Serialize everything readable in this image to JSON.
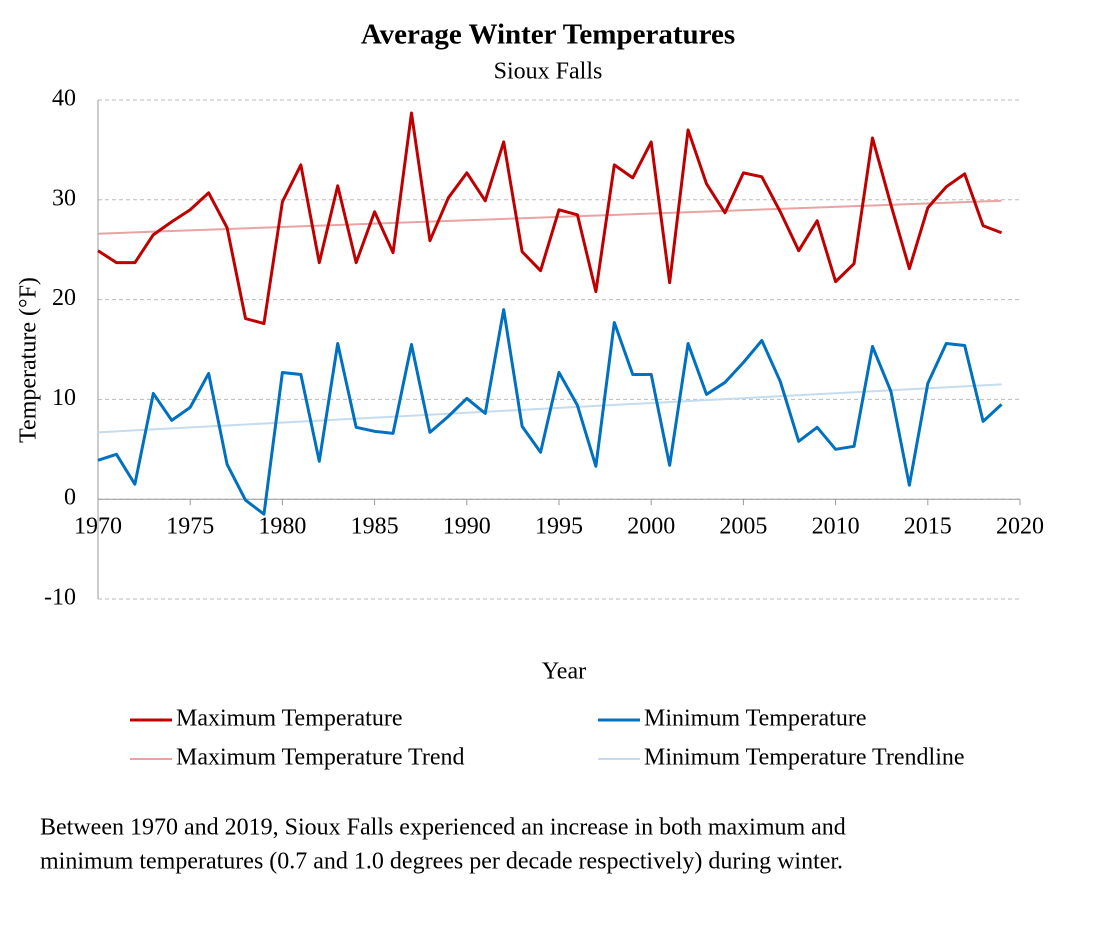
{
  "chart_data": {
    "type": "line",
    "title": "Average Winter Temperatures",
    "subtitle": "Sioux Falls",
    "x_label": "Year",
    "y_label": "Temperature (°F)",
    "x": [
      1970,
      1971,
      1972,
      1973,
      1974,
      1975,
      1976,
      1977,
      1978,
      1979,
      1980,
      1981,
      1982,
      1983,
      1984,
      1985,
      1986,
      1987,
      1988,
      1989,
      1990,
      1991,
      1992,
      1993,
      1994,
      1995,
      1996,
      1997,
      1998,
      1999,
      2000,
      2001,
      2002,
      2003,
      2004,
      2005,
      2006,
      2007,
      2008,
      2009,
      2010,
      2011,
      2012,
      2013,
      2014,
      2015,
      2016,
      2017,
      2018,
      2019
    ],
    "series": [
      {
        "name": "Maximum Temperature",
        "color": "#c00000",
        "line_width": 3,
        "values": [
          24.9,
          23.7,
          23.7,
          26.5,
          27.8,
          29.0,
          30.7,
          27.2,
          18.1,
          17.6,
          29.8,
          33.5,
          23.7,
          31.4,
          23.7,
          28.8,
          24.7,
          38.7,
          25.9,
          30.2,
          32.7,
          29.9,
          35.8,
          24.8,
          22.9,
          29.0,
          28.5,
          20.8,
          33.5,
          32.2,
          35.8,
          21.7,
          37.0,
          31.6,
          28.7,
          32.7,
          32.3,
          28.8,
          24.9,
          27.9,
          21.8,
          23.6,
          36.2,
          29.5,
          23.1,
          29.2,
          31.3,
          32.6,
          27.4,
          26.7
        ]
      },
      {
        "name": "Minimum Temperature",
        "color": "#0070c0",
        "line_width": 3,
        "values": [
          3.9,
          4.5,
          1.5,
          10.6,
          7.9,
          9.2,
          12.6,
          3.5,
          -0.1,
          -1.5,
          12.7,
          12.5,
          3.8,
          15.6,
          7.2,
          6.8,
          6.6,
          15.5,
          6.7,
          8.3,
          10.1,
          8.6,
          19.0,
          7.3,
          4.7,
          12.7,
          9.4,
          3.3,
          17.7,
          12.5,
          12.5,
          3.4,
          15.6,
          10.5,
          11.7,
          13.7,
          15.9,
          11.8,
          5.8,
          7.2,
          5.0,
          5.3,
          15.3,
          10.8,
          1.4,
          11.6,
          15.6,
          15.4,
          7.8,
          9.5
        ]
      },
      {
        "name": "Maximum Temperature Trend",
        "color": "#e8a3a3",
        "line_width": 2,
        "x": [
          1970,
          2019
        ],
        "values": [
          26.6,
          29.9
        ]
      },
      {
        "name": "Minimum Temperature Trendline",
        "color": "#c5dcef",
        "line_width": 2,
        "x": [
          1970,
          2019
        ],
        "values": [
          6.7,
          11.5
        ]
      }
    ],
    "xlim": [
      1970,
      2020
    ],
    "xticks": [
      1970,
      1975,
      1980,
      1985,
      1990,
      1995,
      2000,
      2005,
      2010,
      2015,
      2020
    ],
    "ylim": [
      -10,
      40
    ],
    "yticks": [
      -10,
      0,
      10,
      20,
      30,
      40
    ],
    "grid": true,
    "legend": "bottom",
    "caption": [
      "Between 1970 and 2019, Sioux Falls experienced an increase in both maximum and",
      "minimum temperatures (0.7 and 1.0 degrees per decade respectively) during winter."
    ]
  }
}
